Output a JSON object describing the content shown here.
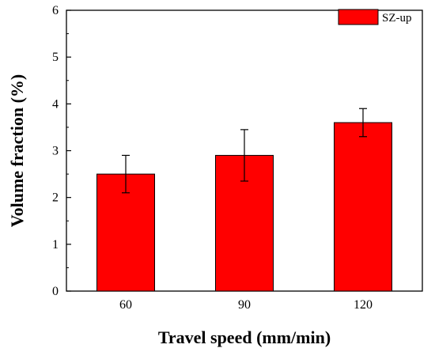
{
  "chart_data": {
    "type": "bar",
    "categories": [
      "60",
      "90",
      "120"
    ],
    "series": [
      {
        "name": "SZ-up",
        "values": [
          2.5,
          2.9,
          3.6
        ],
        "error_low": [
          2.1,
          2.35,
          3.3
        ],
        "error_high": [
          2.9,
          3.45,
          3.9
        ],
        "color": "#ff0000"
      }
    ],
    "xlabel": "Travel speed (mm/min)",
    "ylabel": "Volume fraction (%)",
    "ylim": [
      0,
      6
    ],
    "yticks": [
      "0",
      "1",
      "2",
      "3",
      "4",
      "5",
      "6"
    ],
    "grid": false,
    "legend_position": "top-right"
  }
}
